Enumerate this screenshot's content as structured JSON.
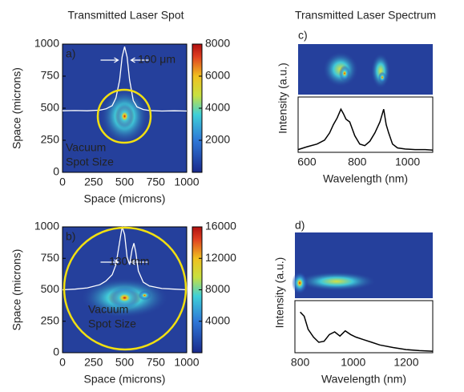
{
  "chart_data": [
    {
      "type": "heatmap",
      "title": "Transmitted Laser Spot",
      "label": "a)",
      "xlabel": "Space (microns)",
      "ylabel": "Space (microns)",
      "xlim": [
        0,
        1000
      ],
      "ylim": [
        0,
        1000
      ],
      "xticks": [
        0,
        250,
        500,
        750,
        1000
      ],
      "yticks": [
        0,
        250,
        500,
        750,
        1000
      ],
      "colorbar": {
        "lim": [
          0,
          8000
        ],
        "ticks": [
          2000,
          4000,
          6000,
          8000
        ]
      },
      "profile": {
        "color": "#ffffff",
        "x": [
          0,
          100,
          200,
          300,
          350,
          400,
          430,
          460,
          480,
          500,
          520,
          540,
          570,
          600,
          650,
          700,
          800,
          900,
          1000
        ],
        "values": [
          480,
          482,
          480,
          485,
          495,
          520,
          580,
          720,
          900,
          980,
          900,
          720,
          560,
          510,
          490,
          482,
          478,
          480,
          478
        ]
      },
      "annotations": [
        "100 μm",
        "Vacuum",
        "Spot Size"
      ]
    },
    {
      "type": "heatmap",
      "label": "b)",
      "xlabel": "Space (microns)",
      "ylabel": "Space (microns)",
      "xlim": [
        0,
        1000
      ],
      "ylim": [
        0,
        1000
      ],
      "xticks": [
        0,
        250,
        500,
        750,
        1000
      ],
      "yticks": [
        0,
        250,
        500,
        750,
        1000
      ],
      "colorbar": {
        "lim": [
          0,
          16000
        ],
        "ticks": [
          4000,
          8000,
          12000,
          16000
        ]
      },
      "profile": {
        "color": "#ffffff",
        "x": [
          0,
          100,
          200,
          300,
          350,
          400,
          430,
          460,
          480,
          500,
          520,
          540,
          560,
          575,
          590,
          610,
          650,
          700,
          800,
          900,
          1000
        ],
        "values": [
          500,
          505,
          515,
          540,
          570,
          620,
          700,
          880,
          1000,
          940,
          760,
          700,
          820,
          870,
          800,
          650,
          560,
          530,
          510,
          505,
          500
        ]
      },
      "annotations": [
        "130 mm",
        "Vacuum",
        "Spot Size"
      ]
    },
    {
      "type": "line",
      "title": "Transmitted Laser Spectrum",
      "label": "c)",
      "xlabel": "Wavelength (nm)",
      "ylabel": "Intensity (a.u.)",
      "xlim": [
        565,
        1100
      ],
      "ylim": [
        0,
        1
      ],
      "xticks": [
        600,
        800,
        1000
      ],
      "color": "#000000",
      "x": [
        565,
        600,
        640,
        670,
        690,
        705,
        720,
        735,
        745,
        755,
        770,
        790,
        810,
        830,
        850,
        870,
        890,
        905,
        915,
        925,
        940,
        960,
        990,
        1030,
        1070,
        1100
      ],
      "values": [
        0.05,
        0.1,
        0.15,
        0.22,
        0.35,
        0.5,
        0.62,
        0.78,
        0.7,
        0.6,
        0.55,
        0.3,
        0.15,
        0.12,
        0.2,
        0.35,
        0.55,
        0.78,
        0.5,
        0.35,
        0.15,
        0.08,
        0.06,
        0.05,
        0.05,
        0.04
      ]
    },
    {
      "type": "line",
      "label": "d)",
      "xlabel": "Wavelength (nm)",
      "ylabel": "Intensity (a.u.)",
      "xlim": [
        780,
        1300
      ],
      "ylim": [
        0,
        1
      ],
      "xticks": [
        800,
        1000,
        1200
      ],
      "color": "#000000",
      "x": [
        800,
        815,
        830,
        850,
        870,
        890,
        910,
        930,
        950,
        970,
        990,
        1010,
        1040,
        1070,
        1100,
        1150,
        1200,
        1250,
        1300
      ],
      "values": [
        0.78,
        0.7,
        0.45,
        0.3,
        0.2,
        0.22,
        0.35,
        0.4,
        0.32,
        0.42,
        0.35,
        0.3,
        0.25,
        0.2,
        0.15,
        0.1,
        0.06,
        0.04,
        0.03
      ]
    }
  ]
}
